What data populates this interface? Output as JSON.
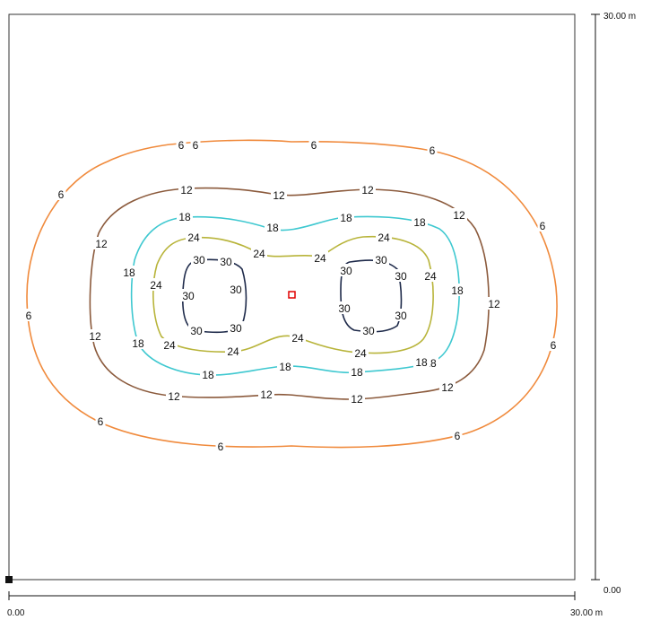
{
  "plot": {
    "x_axis": {
      "start_label": "0.00",
      "end_label": "30.00 m"
    },
    "y_axis": {
      "start_label": "0.00",
      "end_label": "30.00 m"
    }
  },
  "isolines": [
    {
      "level": "6",
      "color": "#F08A3C",
      "labels": [
        "6",
        "6",
        "6",
        "6",
        "6",
        "6",
        "6",
        "6",
        "6",
        "6",
        "6"
      ]
    },
    {
      "level": "12",
      "color": "#8B5A3C",
      "labels": [
        "12",
        "12",
        "12",
        "12",
        "12",
        "12",
        "12",
        "12",
        "12",
        "12",
        "12"
      ]
    },
    {
      "level": "18",
      "color": "#3EC8D0",
      "labels": [
        "18",
        "18",
        "18",
        "18",
        "18",
        "18",
        "18",
        "18",
        "18",
        "18",
        "18",
        "18"
      ]
    },
    {
      "level": "24",
      "color": "#B8B43A",
      "labels": [
        "24",
        "24",
        "24",
        "24",
        "24",
        "24",
        "24",
        "24",
        "24",
        "24"
      ]
    },
    {
      "level": "30",
      "color": "#1E2A4A",
      "labels": [
        "30",
        "30",
        "30",
        "30",
        "30",
        "30",
        "30",
        "30",
        "30",
        "30",
        "30",
        "30"
      ]
    }
  ],
  "marker": {
    "color": "#E00000"
  }
}
